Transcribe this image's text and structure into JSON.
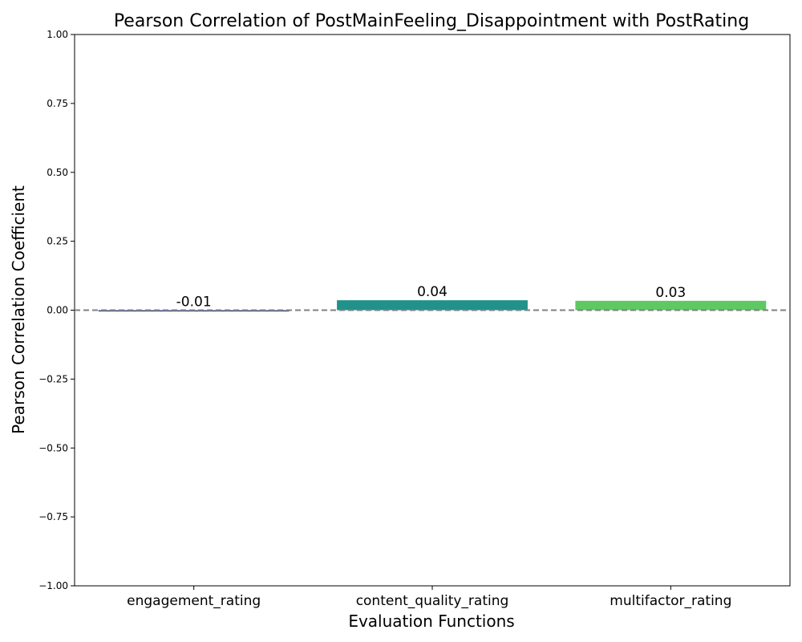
{
  "chart_data": {
    "type": "bar",
    "title": "Pearson Correlation of PostMainFeeling_Disappointment with PostRating",
    "xlabel": "Evaluation Functions",
    "ylabel": "Pearson Correlation Coefficient",
    "categories": [
      "engagement_rating",
      "content_quality_rating",
      "multifactor_rating"
    ],
    "values": [
      -0.005,
      0.036,
      0.034
    ],
    "value_labels": [
      "-0.01",
      "0.04",
      "0.03"
    ],
    "colors": [
      "#3b528b",
      "#21918c",
      "#5ec962"
    ],
    "ylim": [
      -1.0,
      1.0
    ],
    "yticks": [
      -1.0,
      -0.75,
      -0.5,
      -0.25,
      0.0,
      0.25,
      0.5,
      0.75,
      1.0
    ],
    "ytick_labels": [
      "−1.00",
      "−0.75",
      "−0.50",
      "−0.25",
      "0.00",
      "0.25",
      "0.50",
      "0.75",
      "1.00"
    ],
    "reference_line": {
      "y": 0.0,
      "style": "dashed",
      "color": "#808080"
    },
    "grid": false,
    "legend": "none"
  }
}
